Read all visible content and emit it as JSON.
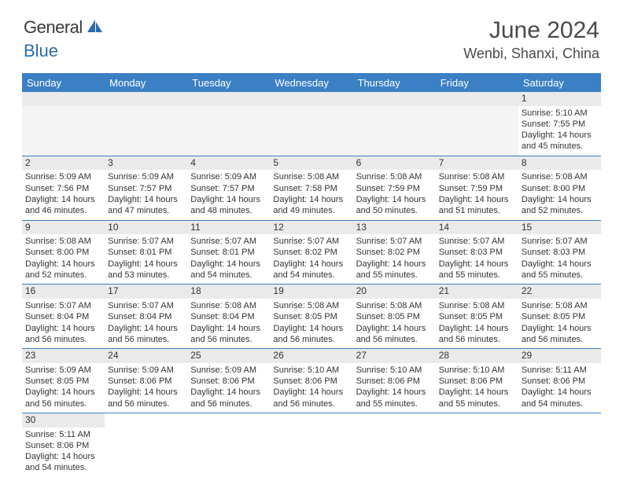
{
  "header": {
    "logo_part1": "General",
    "logo_part2": "Blue",
    "month_title": "June 2024",
    "location": "Wenbi, Shanxi, China"
  },
  "colors": {
    "header_bg": "#3b7fc4",
    "header_text": "#ffffff",
    "daynum_bg": "#eaeaea",
    "border": "#3b7fc4",
    "logo_blue": "#2a6cb0"
  },
  "day_headers": [
    "Sunday",
    "Monday",
    "Tuesday",
    "Wednesday",
    "Thursday",
    "Friday",
    "Saturday"
  ],
  "weeks": [
    {
      "days": [
        null,
        null,
        null,
        null,
        null,
        null,
        {
          "num": "1",
          "sunrise": "Sunrise: 5:10 AM",
          "sunset": "Sunset: 7:55 PM",
          "daylight1": "Daylight: 14 hours",
          "daylight2": "and 45 minutes."
        }
      ]
    },
    {
      "days": [
        {
          "num": "2",
          "sunrise": "Sunrise: 5:09 AM",
          "sunset": "Sunset: 7:56 PM",
          "daylight1": "Daylight: 14 hours",
          "daylight2": "and 46 minutes."
        },
        {
          "num": "3",
          "sunrise": "Sunrise: 5:09 AM",
          "sunset": "Sunset: 7:57 PM",
          "daylight1": "Daylight: 14 hours",
          "daylight2": "and 47 minutes."
        },
        {
          "num": "4",
          "sunrise": "Sunrise: 5:09 AM",
          "sunset": "Sunset: 7:57 PM",
          "daylight1": "Daylight: 14 hours",
          "daylight2": "and 48 minutes."
        },
        {
          "num": "5",
          "sunrise": "Sunrise: 5:08 AM",
          "sunset": "Sunset: 7:58 PM",
          "daylight1": "Daylight: 14 hours",
          "daylight2": "and 49 minutes."
        },
        {
          "num": "6",
          "sunrise": "Sunrise: 5:08 AM",
          "sunset": "Sunset: 7:59 PM",
          "daylight1": "Daylight: 14 hours",
          "daylight2": "and 50 minutes."
        },
        {
          "num": "7",
          "sunrise": "Sunrise: 5:08 AM",
          "sunset": "Sunset: 7:59 PM",
          "daylight1": "Daylight: 14 hours",
          "daylight2": "and 51 minutes."
        },
        {
          "num": "8",
          "sunrise": "Sunrise: 5:08 AM",
          "sunset": "Sunset: 8:00 PM",
          "daylight1": "Daylight: 14 hours",
          "daylight2": "and 52 minutes."
        }
      ]
    },
    {
      "days": [
        {
          "num": "9",
          "sunrise": "Sunrise: 5:08 AM",
          "sunset": "Sunset: 8:00 PM",
          "daylight1": "Daylight: 14 hours",
          "daylight2": "and 52 minutes."
        },
        {
          "num": "10",
          "sunrise": "Sunrise: 5:07 AM",
          "sunset": "Sunset: 8:01 PM",
          "daylight1": "Daylight: 14 hours",
          "daylight2": "and 53 minutes."
        },
        {
          "num": "11",
          "sunrise": "Sunrise: 5:07 AM",
          "sunset": "Sunset: 8:01 PM",
          "daylight1": "Daylight: 14 hours",
          "daylight2": "and 54 minutes."
        },
        {
          "num": "12",
          "sunrise": "Sunrise: 5:07 AM",
          "sunset": "Sunset: 8:02 PM",
          "daylight1": "Daylight: 14 hours",
          "daylight2": "and 54 minutes."
        },
        {
          "num": "13",
          "sunrise": "Sunrise: 5:07 AM",
          "sunset": "Sunset: 8:02 PM",
          "daylight1": "Daylight: 14 hours",
          "daylight2": "and 55 minutes."
        },
        {
          "num": "14",
          "sunrise": "Sunrise: 5:07 AM",
          "sunset": "Sunset: 8:03 PM",
          "daylight1": "Daylight: 14 hours",
          "daylight2": "and 55 minutes."
        },
        {
          "num": "15",
          "sunrise": "Sunrise: 5:07 AM",
          "sunset": "Sunset: 8:03 PM",
          "daylight1": "Daylight: 14 hours",
          "daylight2": "and 55 minutes."
        }
      ]
    },
    {
      "days": [
        {
          "num": "16",
          "sunrise": "Sunrise: 5:07 AM",
          "sunset": "Sunset: 8:04 PM",
          "daylight1": "Daylight: 14 hours",
          "daylight2": "and 56 minutes."
        },
        {
          "num": "17",
          "sunrise": "Sunrise: 5:07 AM",
          "sunset": "Sunset: 8:04 PM",
          "daylight1": "Daylight: 14 hours",
          "daylight2": "and 56 minutes."
        },
        {
          "num": "18",
          "sunrise": "Sunrise: 5:08 AM",
          "sunset": "Sunset: 8:04 PM",
          "daylight1": "Daylight: 14 hours",
          "daylight2": "and 56 minutes."
        },
        {
          "num": "19",
          "sunrise": "Sunrise: 5:08 AM",
          "sunset": "Sunset: 8:05 PM",
          "daylight1": "Daylight: 14 hours",
          "daylight2": "and 56 minutes."
        },
        {
          "num": "20",
          "sunrise": "Sunrise: 5:08 AM",
          "sunset": "Sunset: 8:05 PM",
          "daylight1": "Daylight: 14 hours",
          "daylight2": "and 56 minutes."
        },
        {
          "num": "21",
          "sunrise": "Sunrise: 5:08 AM",
          "sunset": "Sunset: 8:05 PM",
          "daylight1": "Daylight: 14 hours",
          "daylight2": "and 56 minutes."
        },
        {
          "num": "22",
          "sunrise": "Sunrise: 5:08 AM",
          "sunset": "Sunset: 8:05 PM",
          "daylight1": "Daylight: 14 hours",
          "daylight2": "and 56 minutes."
        }
      ]
    },
    {
      "days": [
        {
          "num": "23",
          "sunrise": "Sunrise: 5:09 AM",
          "sunset": "Sunset: 8:05 PM",
          "daylight1": "Daylight: 14 hours",
          "daylight2": "and 56 minutes."
        },
        {
          "num": "24",
          "sunrise": "Sunrise: 5:09 AM",
          "sunset": "Sunset: 8:06 PM",
          "daylight1": "Daylight: 14 hours",
          "daylight2": "and 56 minutes."
        },
        {
          "num": "25",
          "sunrise": "Sunrise: 5:09 AM",
          "sunset": "Sunset: 8:06 PM",
          "daylight1": "Daylight: 14 hours",
          "daylight2": "and 56 minutes."
        },
        {
          "num": "26",
          "sunrise": "Sunrise: 5:10 AM",
          "sunset": "Sunset: 8:06 PM",
          "daylight1": "Daylight: 14 hours",
          "daylight2": "and 56 minutes."
        },
        {
          "num": "27",
          "sunrise": "Sunrise: 5:10 AM",
          "sunset": "Sunset: 8:06 PM",
          "daylight1": "Daylight: 14 hours",
          "daylight2": "and 55 minutes."
        },
        {
          "num": "28",
          "sunrise": "Sunrise: 5:10 AM",
          "sunset": "Sunset: 8:06 PM",
          "daylight1": "Daylight: 14 hours",
          "daylight2": "and 55 minutes."
        },
        {
          "num": "29",
          "sunrise": "Sunrise: 5:11 AM",
          "sunset": "Sunset: 8:06 PM",
          "daylight1": "Daylight: 14 hours",
          "daylight2": "and 54 minutes."
        }
      ]
    },
    {
      "days": [
        {
          "num": "30",
          "sunrise": "Sunrise: 5:11 AM",
          "sunset": "Sunset: 8:06 PM",
          "daylight1": "Daylight: 14 hours",
          "daylight2": "and 54 minutes."
        },
        null,
        null,
        null,
        null,
        null,
        null
      ]
    }
  ]
}
